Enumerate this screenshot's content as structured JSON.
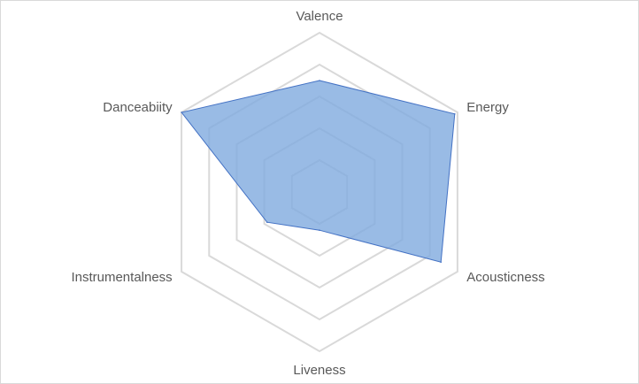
{
  "chart_data": {
    "type": "radar",
    "title": "",
    "categories": [
      "Valence",
      "Energy",
      "Acousticness",
      "Liveness",
      "Instrumentalness",
      "Danceabiity"
    ],
    "rlim": [
      0,
      5
    ],
    "grid": true,
    "legend": "none",
    "series": [
      {
        "values": [
          3.5,
          4.9,
          4.4,
          1.2,
          1.9,
          5.0
        ],
        "fill_color": "#7FAADF",
        "line_color": "#4472C4"
      }
    ],
    "colors": {
      "grid": "#d9d9d9",
      "label": "#595959"
    }
  }
}
